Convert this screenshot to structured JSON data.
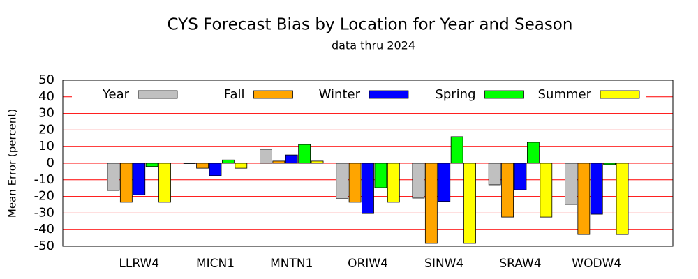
{
  "chart_data": {
    "type": "bar",
    "title": "CYS Forecast Bias by Location for Year and Season",
    "subtitle": "data thru 2024",
    "y_label": "Mean Error (percent)",
    "categories": [
      "LLRW4",
      "MICN1",
      "MNTN1",
      "ORIW4",
      "SINW4",
      "SRAW4",
      "WODW4"
    ],
    "series": [
      {
        "name": "Year",
        "color": "#c0c0c0",
        "values": [
          -16.4,
          0,
          8.4,
          -21.4,
          -21,
          -13,
          -24.8
        ]
      },
      {
        "name": "Fall",
        "color": "#ffa500",
        "values": [
          -23.5,
          -3,
          1.3,
          -23.5,
          -48.3,
          -32.4,
          -42.9
        ]
      },
      {
        "name": "Winter",
        "color": "#0000ff",
        "values": [
          -19,
          -7.5,
          5,
          -30.3,
          -23,
          -16,
          -30.7
        ]
      },
      {
        "name": "Spring",
        "color": "#00ff00",
        "values": [
          -2,
          2,
          11.3,
          -14.7,
          16,
          12.6,
          -0.8
        ]
      },
      {
        "name": "Summer",
        "color": "#ffff00",
        "values": [
          -23.5,
          -3,
          1.3,
          -23.5,
          -48.3,
          -32.4,
          -42.9
        ]
      }
    ],
    "ylim": [
      -50,
      50
    ],
    "yticks": [
      -50,
      -40,
      -30,
      -20,
      -10,
      0,
      10,
      20,
      30,
      40,
      50
    ],
    "grid": true,
    "grid_color": "#ff0000",
    "legend": "top"
  }
}
